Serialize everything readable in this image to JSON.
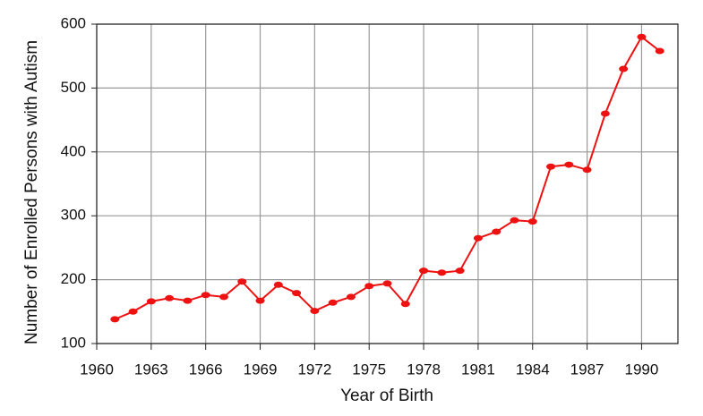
{
  "chart_data": {
    "type": "line",
    "x_label": "Year of Birth",
    "y_label": "Number of Enrolled Persons with Autism",
    "x": [
      1961,
      1962,
      1963,
      1964,
      1965,
      1966,
      1967,
      1968,
      1969,
      1970,
      1971,
      1972,
      1973,
      1974,
      1975,
      1976,
      1977,
      1978,
      1979,
      1980,
      1981,
      1982,
      1983,
      1984,
      1985,
      1986,
      1987,
      1988,
      1989,
      1990,
      1991
    ],
    "series": [
      {
        "color": "#ee1111",
        "values": [
          138,
          150,
          166,
          171,
          167,
          176,
          173,
          197,
          167,
          192,
          179,
          151,
          164,
          173,
          190,
          194,
          162,
          214,
          211,
          214,
          265,
          275,
          293,
          291,
          377,
          380,
          372,
          460,
          530,
          580,
          558
        ]
      }
    ],
    "xlim": [
      1960,
      1992
    ],
    "xticks": [
      1960,
      1963,
      1966,
      1969,
      1972,
      1975,
      1978,
      1981,
      1984,
      1987,
      1990
    ],
    "ylim": [
      100,
      600
    ],
    "yticks": [
      100,
      200,
      300,
      400,
      500,
      600
    ],
    "grid": true
  }
}
